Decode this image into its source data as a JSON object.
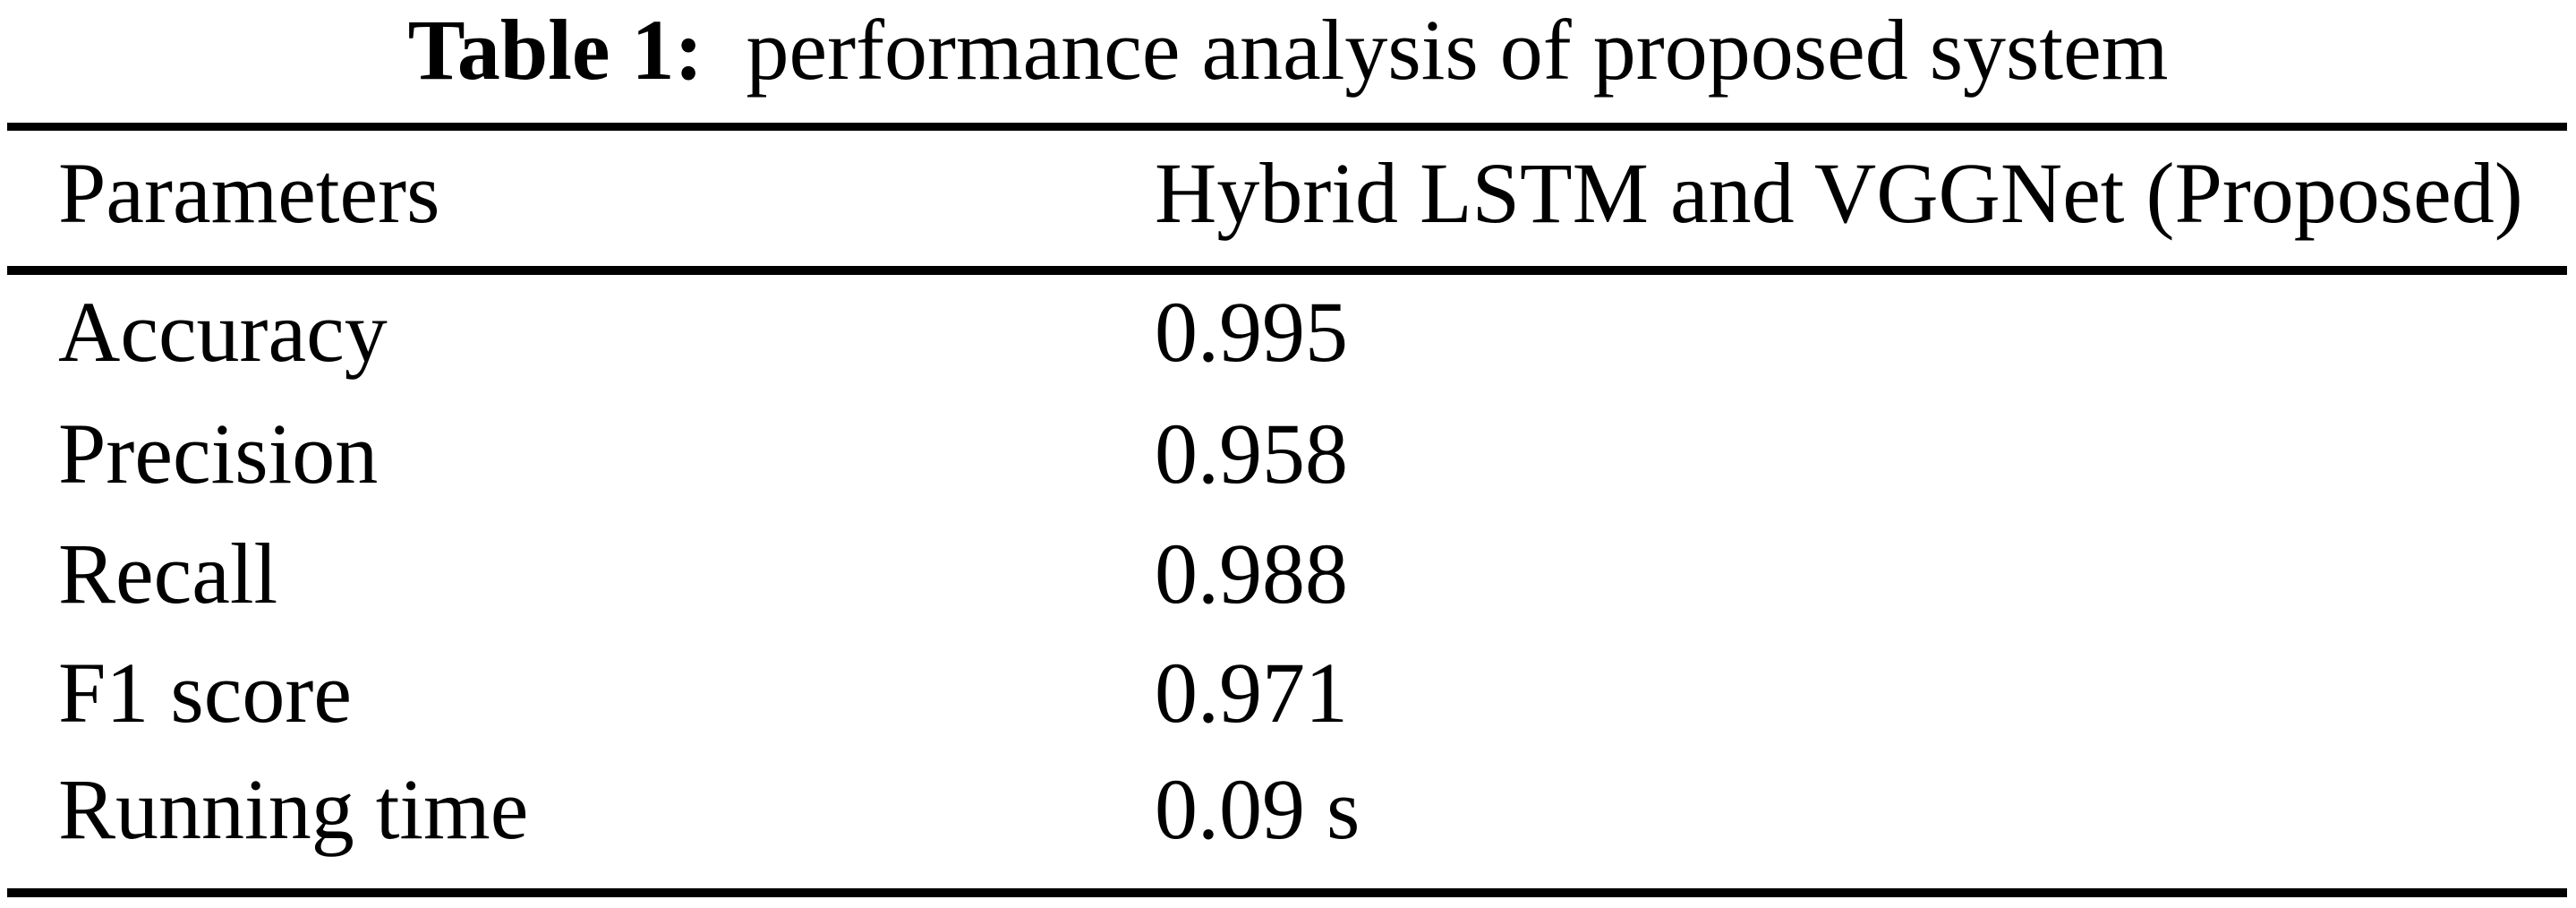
{
  "colors": {
    "background": "#ffffff",
    "text": "#000000",
    "rule": "#000000"
  },
  "caption": {
    "label": "Table 1:",
    "text": "performance analysis of proposed system"
  },
  "table": {
    "header": {
      "col1": "Parameters",
      "col2": "Hybrid LSTM and VGGNet (Proposed)"
    },
    "rows": [
      {
        "parameter": "Accuracy",
        "value": "0.995"
      },
      {
        "parameter": "Precision",
        "value": "0.958"
      },
      {
        "parameter": "Recall",
        "value": "0.988"
      },
      {
        "parameter": "F1 score",
        "value": "0.971"
      },
      {
        "parameter": "Running time",
        "value": "0.09 s"
      }
    ]
  },
  "chart_data": {
    "type": "table",
    "title": "Table 1: performance analysis of proposed system",
    "columns": [
      "Parameters",
      "Hybrid LSTM and VGGNet (Proposed)"
    ],
    "rows": [
      [
        "Accuracy",
        "0.995"
      ],
      [
        "Precision",
        "0.958"
      ],
      [
        "Recall",
        "0.988"
      ],
      [
        "F1 score",
        "0.971"
      ],
      [
        "Running time",
        "0.09 s"
      ]
    ]
  }
}
